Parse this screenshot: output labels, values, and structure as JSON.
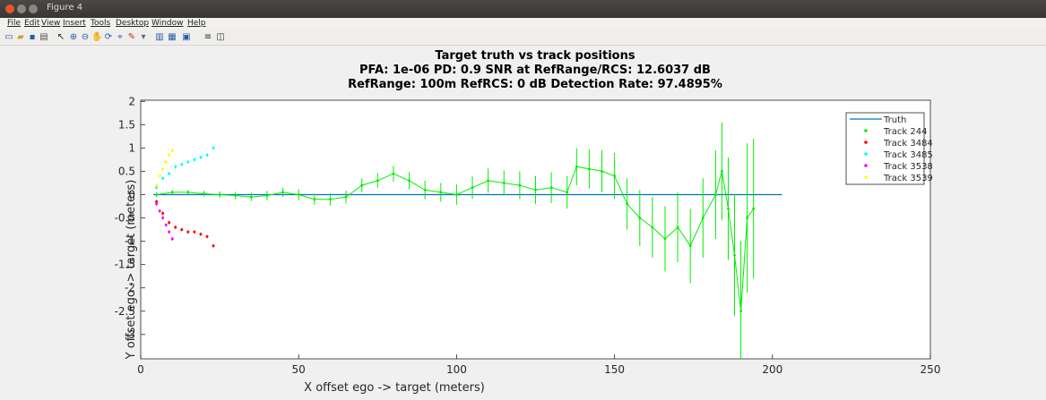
{
  "window": {
    "title": "Figure 4"
  },
  "menu": [
    "File",
    "Edit",
    "View",
    "Insert",
    "Tools",
    "Desktop",
    "Window",
    "Help"
  ],
  "toolbar": {
    "icons": [
      "new-figure-icon",
      "open-file-icon",
      "save-icon",
      "print-icon",
      "pointer-icon",
      "zoom-in-icon",
      "zoom-out-icon",
      "pan-icon",
      "rotate-icon",
      "data-cursor-icon",
      "brush-icon",
      "link-icon",
      "colorbar-icon",
      "legend-icon",
      "hide-plot-tools-icon",
      "show-plot-tools-icon"
    ]
  },
  "chart_data": {
    "type": "line",
    "title": [
      "Target truth vs track positions",
      "PFA: 1e-06   PD: 0.9   SNR at RefRange/RCS: 12.6037 dB",
      "RefRange: 100m  RefRCS: 0 dB  Detection Rate: 97.4895%"
    ],
    "xlabel": "X offset ego -> target (meters)",
    "ylabel": "Y offset ego -> target (meters)",
    "xlim": [
      0,
      250
    ],
    "ylim": [
      -3.5,
      2
    ],
    "xticks": [
      "0",
      "50",
      "100",
      "150",
      "200",
      "250"
    ],
    "yticks": [
      "2",
      "1.5",
      "1",
      "0.5",
      "0",
      "-0.5",
      "-1",
      "-1.5",
      "-2",
      "-2.5",
      "-3"
    ],
    "legend_position": "top-right",
    "series": [
      {
        "name": "Truth",
        "color": "#0072bd",
        "style": "line",
        "points": [
          [
            4,
            0
          ],
          [
            203,
            0
          ]
        ]
      },
      {
        "name": "Track 244",
        "color": "#00ee00",
        "style": "errorbar",
        "points": [
          [
            5,
            0.0,
            0.05
          ],
          [
            10,
            0.05,
            0.05
          ],
          [
            15,
            0.05,
            0.05
          ],
          [
            20,
            0.02,
            0.06
          ],
          [
            25,
            0.0,
            0.07
          ],
          [
            30,
            -0.02,
            0.08
          ],
          [
            35,
            -0.05,
            0.09
          ],
          [
            40,
            -0.02,
            0.1
          ],
          [
            45,
            0.05,
            0.1
          ],
          [
            50,
            0.0,
            0.12
          ],
          [
            55,
            -0.1,
            0.12
          ],
          [
            60,
            -0.1,
            0.13
          ],
          [
            65,
            -0.05,
            0.14
          ],
          [
            70,
            0.2,
            0.15
          ],
          [
            75,
            0.3,
            0.16
          ],
          [
            80,
            0.45,
            0.17
          ],
          [
            85,
            0.3,
            0.18
          ],
          [
            90,
            0.1,
            0.2
          ],
          [
            95,
            0.05,
            0.2
          ],
          [
            100,
            0.0,
            0.22
          ],
          [
            105,
            0.15,
            0.24
          ],
          [
            110,
            0.3,
            0.26
          ],
          [
            115,
            0.25,
            0.27
          ],
          [
            120,
            0.2,
            0.3
          ],
          [
            125,
            0.1,
            0.3
          ],
          [
            130,
            0.15,
            0.33
          ],
          [
            135,
            0.05,
            0.35
          ],
          [
            138,
            0.6,
            0.4
          ],
          [
            142,
            0.55,
            0.42
          ],
          [
            146,
            0.5,
            0.45
          ],
          [
            150,
            0.4,
            0.5
          ],
          [
            154,
            -0.2,
            0.55
          ],
          [
            158,
            -0.5,
            0.6
          ],
          [
            162,
            -0.7,
            0.65
          ],
          [
            166,
            -0.95,
            0.7
          ],
          [
            170,
            -0.7,
            0.75
          ],
          [
            174,
            -1.1,
            0.8
          ],
          [
            178,
            -0.5,
            0.85
          ],
          [
            182,
            0.0,
            0.95
          ],
          [
            184,
            0.5,
            1.05
          ],
          [
            186,
            -0.3,
            1.1
          ],
          [
            188,
            -1.3,
            1.3
          ],
          [
            190,
            -2.5,
            1.5
          ],
          [
            192,
            -0.5,
            1.6
          ],
          [
            194,
            -0.3,
            1.5
          ]
        ]
      },
      {
        "name": "Track 3484",
        "color": "#ff0000",
        "style": "dots",
        "points": [
          [
            5,
            -0.15
          ],
          [
            7,
            -0.4
          ],
          [
            9,
            -0.6
          ],
          [
            11,
            -0.7
          ],
          [
            13,
            -0.75
          ],
          [
            15,
            -0.8
          ],
          [
            17,
            -0.8
          ],
          [
            19,
            -0.85
          ],
          [
            21,
            -0.9
          ],
          [
            23,
            -1.1
          ]
        ]
      },
      {
        "name": "Track 3485",
        "color": "#00ffff",
        "style": "dots",
        "points": [
          [
            5,
            0.15
          ],
          [
            7,
            0.35
          ],
          [
            9,
            0.45
          ],
          [
            11,
            0.6
          ],
          [
            13,
            0.65
          ],
          [
            15,
            0.7
          ],
          [
            17,
            0.75
          ],
          [
            19,
            0.8
          ],
          [
            21,
            0.85
          ],
          [
            23,
            1.0
          ]
        ]
      },
      {
        "name": "Track 3538",
        "color": "#ff00ff",
        "style": "dots",
        "points": [
          [
            5,
            -0.2
          ],
          [
            6,
            -0.35
          ],
          [
            7,
            -0.5
          ],
          [
            8,
            -0.65
          ],
          [
            9,
            -0.8
          ],
          [
            10,
            -0.95
          ]
        ]
      },
      {
        "name": "Track 3539",
        "color": "#ffff00",
        "style": "dots",
        "points": [
          [
            5,
            0.2
          ],
          [
            6,
            0.4
          ],
          [
            7,
            0.55
          ],
          [
            8,
            0.7
          ],
          [
            9,
            0.85
          ],
          [
            10,
            0.95
          ]
        ]
      }
    ]
  }
}
